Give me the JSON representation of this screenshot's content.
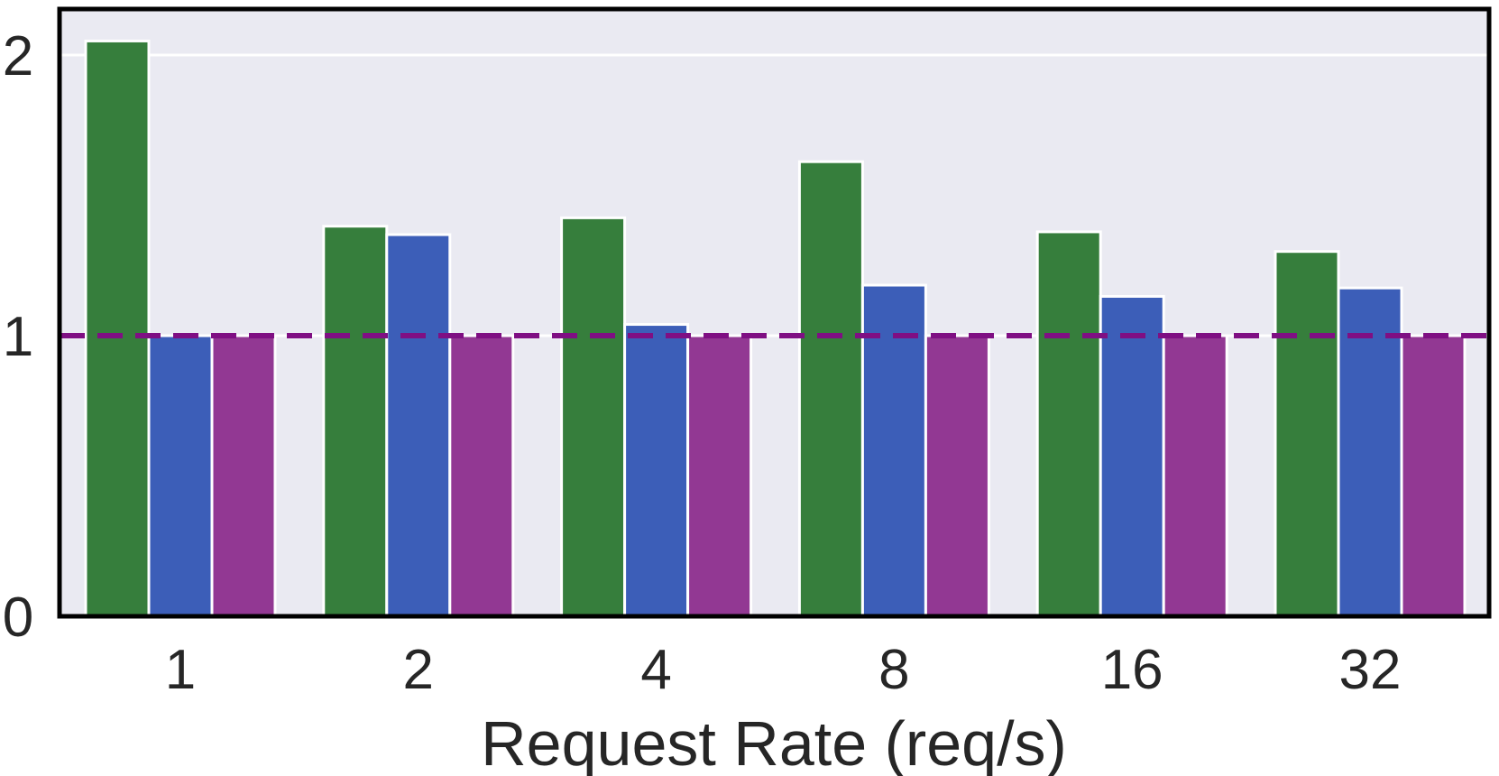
{
  "chart_data": {
    "type": "bar",
    "title": "",
    "xlabel": "Request Rate (req/s)",
    "ylabel": "",
    "categories": [
      "1",
      "2",
      "4",
      "8",
      "16",
      "32"
    ],
    "series": [
      {
        "values": [
          2.05,
          1.39,
          1.42,
          1.62,
          1.37,
          1.3
        ],
        "color": "#367e3c"
      },
      {
        "values": [
          1.0,
          1.36,
          1.04,
          1.18,
          1.14,
          1.17
        ],
        "color": "#3c5eb8"
      },
      {
        "values": [
          1.0,
          1.0,
          1.0,
          1.0,
          1.0,
          1.0
        ],
        "color": "#923893"
      }
    ],
    "reference_line": {
      "y": 1.0,
      "style": "dashed",
      "color": "#7f0f83"
    },
    "yticks": [
      0,
      1,
      2
    ],
    "ylim": [
      0,
      2.2
    ],
    "grid": true,
    "background": "#eaeaf2",
    "legend": "none"
  }
}
